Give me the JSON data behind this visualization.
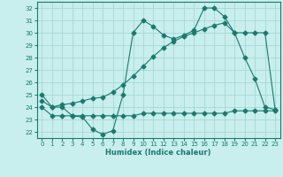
{
  "line1_x": [
    0,
    1,
    2,
    3,
    4,
    5,
    6,
    7,
    8,
    9,
    10,
    11,
    12,
    13,
    14,
    15,
    16,
    17,
    18,
    19,
    20,
    21,
    22,
    23
  ],
  "line1_y": [
    25.0,
    24.0,
    24.0,
    23.3,
    23.2,
    22.2,
    21.8,
    22.1,
    25.0,
    30.0,
    31.0,
    30.5,
    29.8,
    29.5,
    29.8,
    30.2,
    32.0,
    32.0,
    31.3,
    30.0,
    28.0,
    26.3,
    24.0,
    23.8
  ],
  "line2_x": [
    0,
    1,
    2,
    3,
    4,
    5,
    6,
    7,
    8,
    9,
    10,
    11,
    12,
    13,
    14,
    15,
    16,
    17,
    18,
    19,
    20,
    21,
    22,
    23
  ],
  "line2_y": [
    24.5,
    24.0,
    24.2,
    24.3,
    24.5,
    24.7,
    24.8,
    25.2,
    25.8,
    26.5,
    27.3,
    28.1,
    28.8,
    29.3,
    29.7,
    30.0,
    30.3,
    30.6,
    30.8,
    30.0,
    30.0,
    30.0,
    30.0,
    23.8
  ],
  "line3_x": [
    0,
    1,
    2,
    3,
    4,
    5,
    6,
    7,
    8,
    9,
    10,
    11,
    12,
    13,
    14,
    15,
    16,
    17,
    18,
    19,
    20,
    21,
    22,
    23
  ],
  "line3_y": [
    24.0,
    23.3,
    23.3,
    23.3,
    23.3,
    23.3,
    23.3,
    23.3,
    23.3,
    23.3,
    23.5,
    23.5,
    23.5,
    23.5,
    23.5,
    23.5,
    23.5,
    23.5,
    23.5,
    23.7,
    23.7,
    23.7,
    23.7,
    23.7
  ],
  "line_color": "#1a7a6e",
  "bg_color": "#c8eeed",
  "grid_color": "#a0d4d0",
  "xlabel": "Humidex (Indice chaleur)",
  "ylim": [
    21.5,
    32.5
  ],
  "xlim": [
    -0.5,
    23.5
  ],
  "yticks": [
    22,
    23,
    24,
    25,
    26,
    27,
    28,
    29,
    30,
    31,
    32
  ],
  "xticks": [
    0,
    1,
    2,
    3,
    4,
    5,
    6,
    7,
    8,
    9,
    10,
    11,
    12,
    13,
    14,
    15,
    16,
    17,
    18,
    19,
    20,
    21,
    22,
    23
  ],
  "marker": "D",
  "markersize": 2.5
}
